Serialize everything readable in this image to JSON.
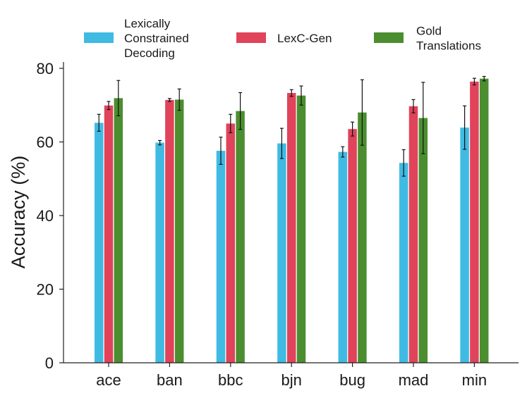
{
  "chart_data": {
    "type": "bar",
    "title": "",
    "xlabel": "",
    "ylabel": "Accuracy (%)",
    "ylim": [
      0,
      82
    ],
    "yticks": [
      "0",
      "20",
      "40",
      "60",
      "80"
    ],
    "ytick_values": [
      0,
      20,
      40,
      60,
      80
    ],
    "grid": false,
    "legend_position": "top",
    "categories": [
      "ace",
      "ban",
      "bbc",
      "bjn",
      "bug",
      "mad",
      "min"
    ],
    "series": [
      {
        "name": "Lexically Constrained Decoding",
        "legend_lines": [
          "Lexically",
          "Constrained",
          "Decoding"
        ],
        "color": "#3fbbe3",
        "values": [
          65.2,
          59.8,
          57.6,
          59.6,
          57.3,
          54.3,
          63.9
        ],
        "errors": [
          2.3,
          0.6,
          3.7,
          4.1,
          1.4,
          3.6,
          5.9
        ]
      },
      {
        "name": "LexC-Gen",
        "legend_lines": [
          "LexC-Gen"
        ],
        "color": "#e0435a",
        "values": [
          69.9,
          71.4,
          65.0,
          73.3,
          63.5,
          69.7,
          76.4
        ],
        "errors": [
          1.1,
          0.4,
          2.5,
          0.9,
          1.9,
          1.8,
          0.9
        ]
      },
      {
        "name": "Gold Translations",
        "legend_lines": [
          "Gold",
          "Translations"
        ],
        "color": "#4b8e2f",
        "values": [
          71.9,
          71.5,
          68.4,
          72.6,
          68.0,
          66.5,
          77.2
        ],
        "errors": [
          4.8,
          2.9,
          5.0,
          2.6,
          8.9,
          9.7,
          0.6
        ]
      }
    ]
  }
}
